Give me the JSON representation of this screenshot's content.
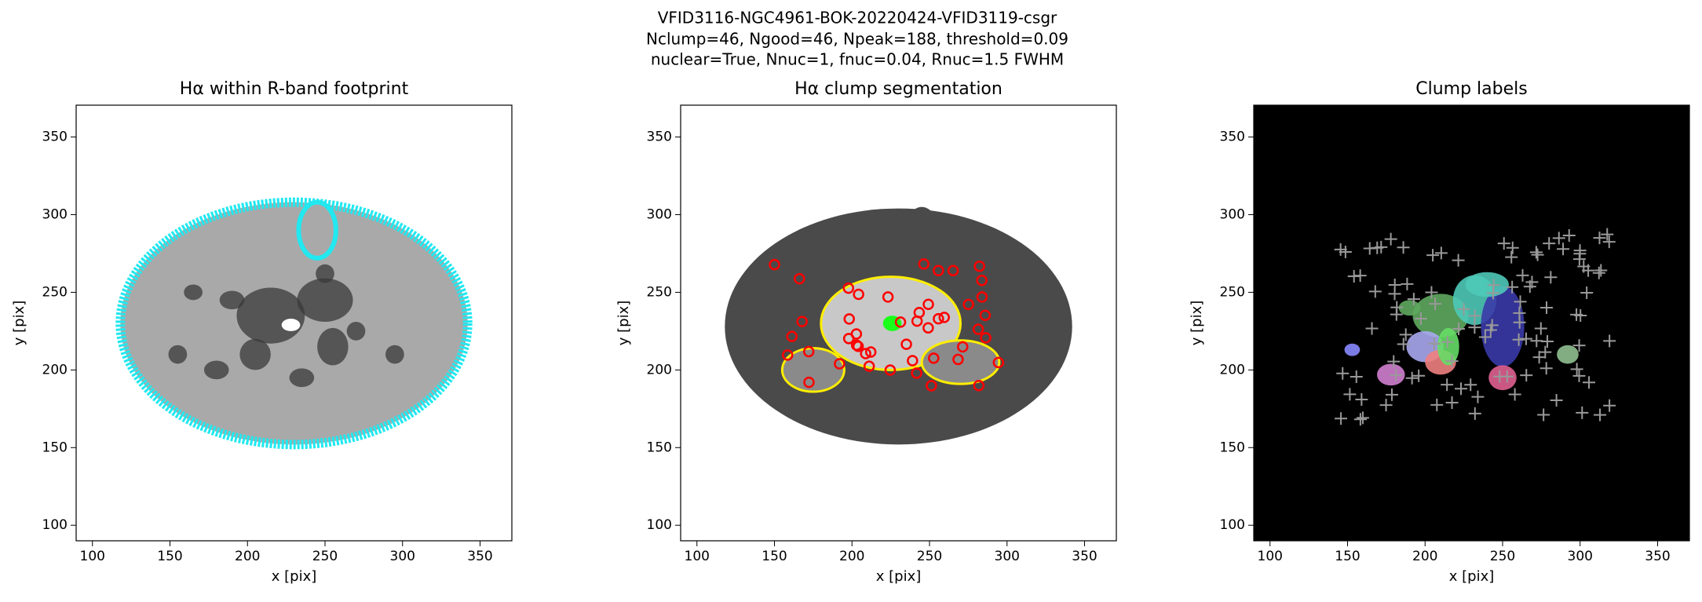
{
  "figure": {
    "title_lines": [
      "VFID3116-NGC4961-BOK-20220424-VFID3119-csgr",
      "Nclump=46, Ngood=46, Npeak=188, threshold=0.09",
      "nuclear=True, Nnuc=1, fnuc=0.04, Rnuc=1.5 FWHM"
    ]
  },
  "chart_data": [
    {
      "type": "image",
      "title": "Hα within R-band footprint",
      "xlabel": "x [pix]",
      "ylabel": "y [pix]",
      "xlim": [
        89.5,
        370.5
      ],
      "ylim": [
        90,
        370.5
      ],
      "xticks": [
        100,
        150,
        200,
        250,
        300,
        350
      ],
      "yticks": [
        100,
        150,
        200,
        250,
        300,
        350
      ]
    },
    {
      "type": "image",
      "title": "Hα clump segmentation",
      "xlabel": "x [pix]",
      "ylabel": "y [pix]",
      "xlim": [
        89.5,
        370.5
      ],
      "ylim": [
        90,
        370.5
      ],
      "xticks": [
        100,
        150,
        200,
        250,
        300,
        350
      ],
      "yticks": [
        100,
        150,
        200,
        250,
        300,
        350
      ]
    },
    {
      "type": "image",
      "title": "Clump labels",
      "xlabel": "x [pix]",
      "ylabel": "y [pix]",
      "xlim": [
        89.5,
        370.5
      ],
      "ylim": [
        90,
        370.5
      ],
      "xticks": [
        100,
        150,
        200,
        250,
        300,
        350
      ],
      "yticks": [
        100,
        150,
        200,
        250,
        300,
        350
      ]
    }
  ]
}
